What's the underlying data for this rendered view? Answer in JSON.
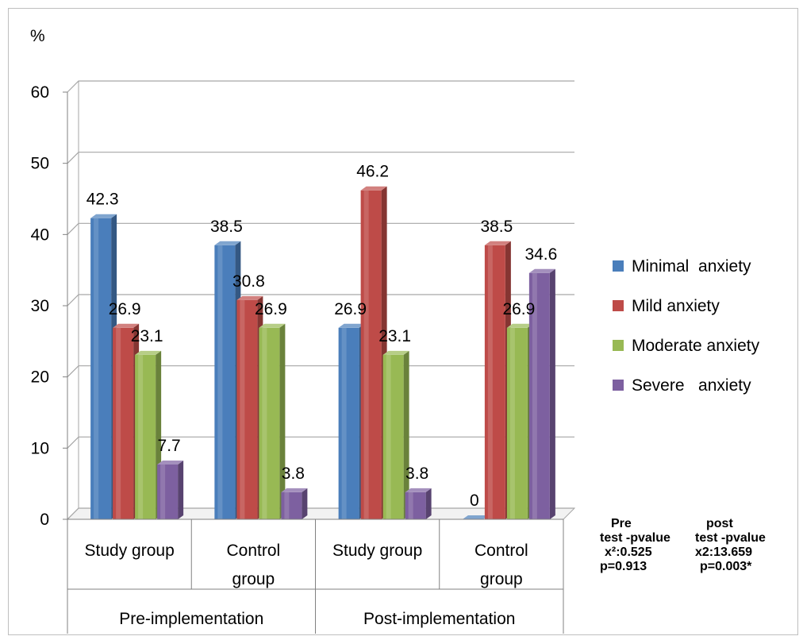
{
  "chart_data": {
    "type": "bar",
    "ylabel": "%",
    "ylim": [
      0,
      60
    ],
    "yticks": [
      "0",
      "10",
      "20",
      "30",
      "40",
      "50",
      "60"
    ],
    "grid": true,
    "legend_position": "right",
    "categories": [
      "Study group",
      "Control group",
      "Study group",
      "Control group"
    ],
    "category_groups": [
      "Pre-implementation",
      "Post-implementation"
    ],
    "series": [
      {
        "name": "Minimal  anxiety",
        "color": "#4a7ebb",
        "values": [
          42.3,
          38.5,
          26.9,
          0
        ]
      },
      {
        "name": "Mild anxiety",
        "color": "#be4b48",
        "values": [
          26.9,
          30.8,
          46.2,
          38.5
        ]
      },
      {
        "name": "Moderate anxiety",
        "color": "#98b954",
        "values": [
          23.1,
          26.9,
          23.1,
          26.9
        ]
      },
      {
        "name": "Severe   anxiety",
        "color": "#7d60a0",
        "values": [
          7.7,
          3.8,
          3.8,
          34.6
        ]
      }
    ],
    "stats": [
      {
        "title": "Pre",
        "line1": "test -pvalue",
        "line2": "x²:0.525",
        "line3": "p=0.913"
      },
      {
        "title": "post",
        "line1": "test -pvalue",
        "line2": "x2:13.659",
        "line3": "p=0.003*"
      }
    ]
  }
}
